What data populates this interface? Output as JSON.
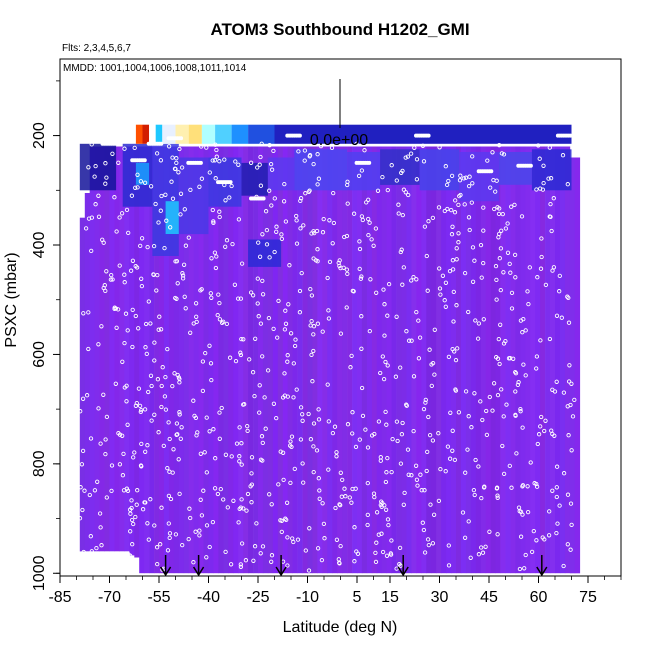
{
  "chart_data": {
    "type": "heatmap",
    "title": "ATOM3 Southbound H1202_GMI",
    "flights_note": "Flts: 2,3,4,5,6,7",
    "dates_note": "MMDD: 1001,1004,1006,1008,1011,1014",
    "xlabel": "Latitude (deg N)",
    "ylabel": "PSXC (mbar)",
    "xlim": [
      -85,
      85
    ],
    "ylim": [
      1005,
      60
    ],
    "x_ticks": [
      -85,
      -70,
      -55,
      -40,
      -25,
      -10,
      5,
      15,
      30,
      45,
      60,
      75
    ],
    "y_ticks": [
      200,
      400,
      600,
      800,
      1000
    ],
    "scale_label": "0.0e+00",
    "arrow_latitudes": [
      -53,
      -43,
      -18,
      19,
      61
    ],
    "colors": {
      "background_field": "#8a2be2",
      "dark_blue": "#1a1aa6",
      "cyan": "#1ec8ff",
      "warm": "#ff5000"
    }
  }
}
